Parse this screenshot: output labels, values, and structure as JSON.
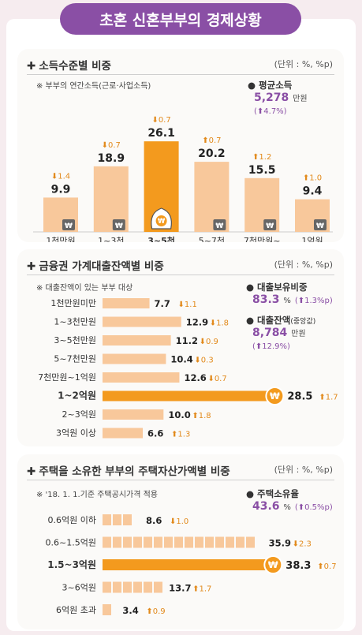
{
  "title": "초혼 신혼부부의 경제상황",
  "icons": {
    "plus": "plus-icon",
    "won": "won-coin-icon",
    "arrow_up": "arrow-up-icon",
    "arrow_down": "arrow-down-icon"
  },
  "colors": {
    "accent": "#8a4fa5",
    "bar": "#f8c89b",
    "bar_highlight": "#f39a1e",
    "change": "#e28a1c"
  },
  "section1": {
    "heading": "소득수준별 비중",
    "unit": "(단위 : %, %p)",
    "note": "※ 부부의 연간소득(근로·사업소득)",
    "stat_label": "평균소득",
    "stat_value": "5,278",
    "stat_unit": "만원",
    "stat_change": "(⬆4.7%)"
  },
  "section2": {
    "heading": "금융권 가계대출잔액별 비중",
    "unit": "(단위 : %, %p)",
    "note": "※ 대출잔액이 있는 부부 대상",
    "stat1_label": "대출보유비중",
    "stat1_value": "83.3",
    "stat1_unit": "%",
    "stat1_change": "(⬆1.3%p)",
    "stat2_label": "대출잔액",
    "stat2_sub": "(중앙값)",
    "stat2_value": "8,784",
    "stat2_unit": "만원",
    "stat2_change": "(⬆12.9%)"
  },
  "section3": {
    "heading": "주택을 소유한 부부의 주택자산가액별 비중",
    "unit": "(단위 : %, %p)",
    "note": "※ '18. 1. 1.기준 주택공시가격 적용",
    "stat_label": "주택소유율",
    "stat_value": "43.6",
    "stat_unit": "%",
    "stat_change": "(⬆0.5%p)"
  },
  "chart_data": [
    {
      "type": "bar",
      "orientation": "vertical",
      "categories": [
        "1천만원\n미만",
        "1~3천\n만원",
        "3~5천\n만원",
        "5~7천\n만원",
        "7천만원~\n1억원",
        "1억원\n이상"
      ],
      "values": [
        9.9,
        18.9,
        26.1,
        20.2,
        15.5,
        9.4
      ],
      "changes": [
        "⬇1.4",
        "⬇0.7",
        "⬇0.7",
        "⬆0.7",
        "⬆1.2",
        "⬆1.0"
      ],
      "value_labels": [
        "9.9",
        "18.9",
        "26.1",
        "20.2",
        "15.5",
        "9.4"
      ],
      "highlight_index": 2,
      "ylim": [
        0,
        30
      ]
    },
    {
      "type": "bar",
      "orientation": "horizontal",
      "categories": [
        "1천만원미만",
        "1~3천만원",
        "3~5천만원",
        "5~7천만원",
        "7천만원~1억원",
        "1~2억원",
        "2~3억원",
        "3억원 이상"
      ],
      "values": [
        7.7,
        12.9,
        11.2,
        10.4,
        12.6,
        28.5,
        10.0,
        6.6
      ],
      "value_labels": [
        "7.7",
        "12.9",
        "11.2",
        "10.4",
        "12.6",
        "28.5",
        "10.0",
        "6.6"
      ],
      "changes": [
        "⬇1.1",
        "⬇1.8",
        "⬇0.9",
        "⬇0.3",
        "⬇0.7",
        "⬆1.7",
        "⬆1.8",
        "⬆1.3"
      ],
      "highlight_index": 5,
      "xlim": [
        0,
        30
      ]
    },
    {
      "type": "bar",
      "orientation": "horizontal",
      "categories": [
        "0.6억원 이하",
        "0.6~1.5억원",
        "1.5~3억원",
        "3~6억원",
        "6억원 초과"
      ],
      "values": [
        8.6,
        35.9,
        38.3,
        13.7,
        3.4
      ],
      "value_labels": [
        "8.6",
        "35.9",
        "38.3",
        "13.7",
        "3.4"
      ],
      "changes": [
        "⬇1.0",
        "⬇2.3",
        "⬆0.7",
        "⬆1.7",
        "⬆0.9"
      ],
      "highlight_index": 2,
      "xlim": [
        0,
        40
      ]
    }
  ]
}
